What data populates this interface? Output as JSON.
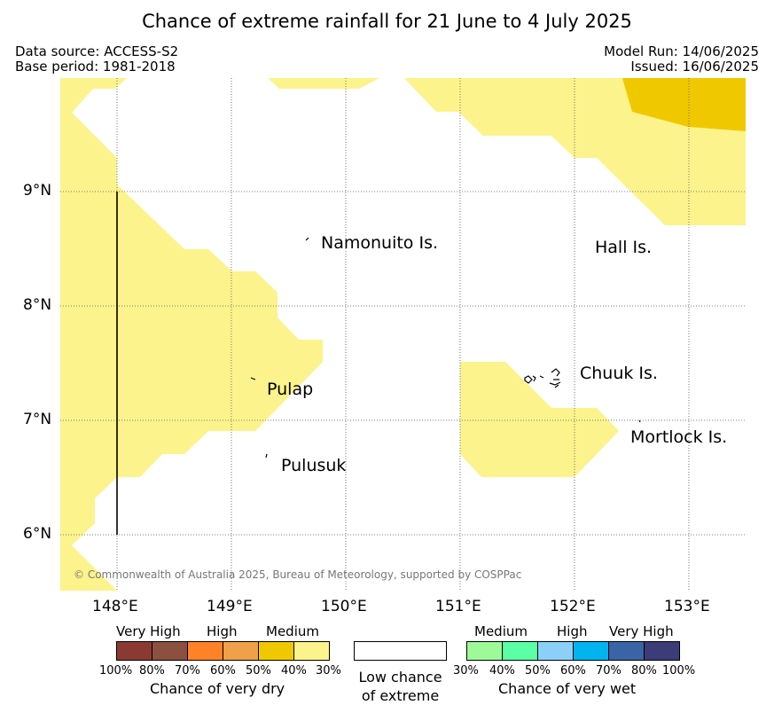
{
  "title": "Chance of extreme rainfall for 21 June to 4 July 2025",
  "header": {
    "data_source": "Data source: ACCESS-S2",
    "base_period": "Base period: 1981-2018",
    "model_run": "Model Run: 14/06/2025",
    "issued": "Issued: 16/06/2025"
  },
  "map": {
    "lon_ticks": [
      "148°E",
      "149°E",
      "150°E",
      "151°E",
      "152°E",
      "153°E"
    ],
    "lat_ticks": [
      "9°N",
      "8°N",
      "7°N",
      "6°N"
    ],
    "places": [
      {
        "name": "Namonuito Is."
      },
      {
        "name": "Hall Is."
      },
      {
        "name": "Chuuk Is."
      },
      {
        "name": "Pulap"
      },
      {
        "name": "Mortlock Is."
      },
      {
        "name": "Pulusuk"
      }
    ],
    "copyright": "© Commonwealth of Australia 2025, Bureau of Meteorology, supported by COSPPac",
    "colors": {
      "dry_30_40": "#fcf38c",
      "dry_40_50": "#f0c800"
    }
  },
  "legend": {
    "dry": {
      "very_high": "Very High",
      "high": "High",
      "medium": "Medium",
      "title": "Chance of very dry",
      "pcts": [
        "100%",
        "80%",
        "70%",
        "60%",
        "50%",
        "40%",
        "30%"
      ],
      "colors": [
        "#8b3a33",
        "#8c5040",
        "#ff8226",
        "#f0a048",
        "#f0c800",
        "#fcf38c"
      ]
    },
    "low": {
      "line1": "Low chance",
      "line2": "of extreme"
    },
    "wet": {
      "medium": "Medium",
      "high": "High",
      "very_high": "Very High",
      "title": "Chance of very wet",
      "pcts": [
        "30%",
        "40%",
        "50%",
        "60%",
        "70%",
        "80%",
        "100%"
      ],
      "colors": [
        "#9efa98",
        "#5affa6",
        "#8cd0fa",
        "#00b4f0",
        "#3a64a6",
        "#3c3c78"
      ]
    }
  }
}
